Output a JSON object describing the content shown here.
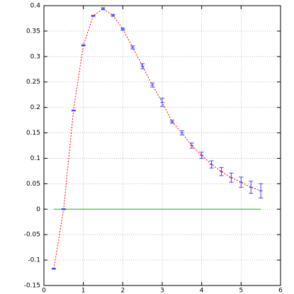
{
  "chart_data": {
    "type": "scatter",
    "x": [
      0.25,
      0.5,
      0.75,
      1.0,
      1.25,
      1.5,
      1.75,
      2.0,
      2.25,
      2.5,
      2.75,
      3.0,
      3.25,
      3.5,
      3.75,
      4.0,
      4.25,
      4.5,
      4.75,
      5.0,
      5.25,
      5.5
    ],
    "series": [
      {
        "color": "#4040ff",
        "line_color": "#ff0000",
        "values": [
          -0.117,
          0.0,
          0.194,
          0.322,
          0.38,
          0.394,
          0.381,
          0.354,
          0.318,
          0.281,
          0.244,
          0.21,
          0.172,
          0.15,
          0.125,
          0.106,
          0.088,
          0.074,
          0.062,
          0.053,
          0.043,
          0.036
        ],
        "errors": [
          0.001,
          0.001,
          0.001,
          0.001,
          0.001,
          0.002,
          0.002,
          0.002,
          0.003,
          0.005,
          0.004,
          0.008,
          0.003,
          0.004,
          0.005,
          0.006,
          0.007,
          0.008,
          0.009,
          0.01,
          0.012,
          0.014
        ]
      }
    ],
    "hline": {
      "y": 0,
      "x": [
        0.25,
        5.5
      ],
      "color": "#00cc00"
    },
    "xlim": [
      0,
      6
    ],
    "xticks": [
      0,
      1,
      2,
      3,
      4,
      5,
      6
    ],
    "ylim": [
      -0.15,
      0.4
    ],
    "yticks": [
      -0.15,
      -0.1,
      -0.05,
      0,
      0.05,
      0.1,
      0.15,
      0.2,
      0.25,
      0.3,
      0.35,
      0.4
    ],
    "grid": true
  }
}
